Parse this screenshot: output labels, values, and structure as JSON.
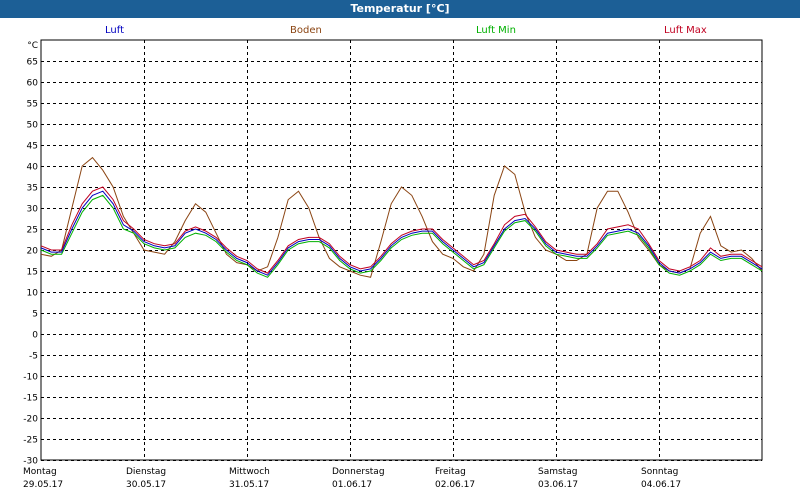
{
  "window": {
    "title": "Temperatur [°C]"
  },
  "legend": [
    {
      "name": "Luft",
      "color": "#0000c0"
    },
    {
      "name": "Boden",
      "color": "#8b4513"
    },
    {
      "name": "Luft Min",
      "color": "#00b000"
    },
    {
      "name": "Luft Max",
      "color": "#c00020"
    }
  ],
  "days": [
    {
      "weekday": "Montag",
      "date": "29.05.17"
    },
    {
      "weekday": "Dienstag",
      "date": "30.05.17"
    },
    {
      "weekday": "Mittwoch",
      "date": "31.05.17"
    },
    {
      "weekday": "Donnerstag",
      "date": "01.06.17"
    },
    {
      "weekday": "Freitag",
      "date": "02.06.17"
    },
    {
      "weekday": "Samstag",
      "date": "03.06.17"
    },
    {
      "weekday": "Sonntag",
      "date": "04.06.17"
    }
  ],
  "chart_data": {
    "type": "line",
    "title": "Temperatur [°C]",
    "ylabel": "°C",
    "ylim": [
      -30,
      70
    ],
    "yticks": [
      65,
      60,
      55,
      50,
      45,
      40,
      35,
      30,
      25,
      20,
      15,
      10,
      5,
      0,
      -5,
      -10,
      -15,
      -20,
      -25,
      -30
    ],
    "xlim": [
      0,
      7
    ],
    "grid": true,
    "x": [
      0,
      0.1,
      0.2,
      0.3,
      0.4,
      0.5,
      0.6,
      0.7,
      0.8,
      0.9,
      1.0,
      1.1,
      1.2,
      1.3,
      1.4,
      1.5,
      1.6,
      1.7,
      1.8,
      1.9,
      2.0,
      2.1,
      2.2,
      2.3,
      2.4,
      2.5,
      2.6,
      2.7,
      2.8,
      2.9,
      3.0,
      3.1,
      3.2,
      3.3,
      3.4,
      3.5,
      3.6,
      3.7,
      3.8,
      3.9,
      4.0,
      4.1,
      4.2,
      4.3,
      4.4,
      4.5,
      4.6,
      4.7,
      4.8,
      4.9,
      5.0,
      5.1,
      5.2,
      5.3,
      5.4,
      5.5,
      5.6,
      5.7,
      5.8,
      5.9,
      6.0,
      6.1,
      6.2,
      6.3,
      6.4,
      6.5,
      6.6,
      6.7,
      6.8,
      6.9,
      7.0
    ],
    "series": [
      {
        "name": "Luft",
        "values": [
          20.5,
          19.5,
          19.5,
          25,
          30,
          33,
          34,
          31,
          26,
          24.5,
          22,
          21,
          20.5,
          21,
          24,
          25,
          24,
          22.5,
          20,
          18,
          17,
          15,
          14,
          17,
          20.5,
          22,
          22.5,
          22.5,
          21,
          18,
          16,
          15,
          15.5,
          18,
          21,
          23,
          24,
          24.5,
          24.5,
          22,
          20,
          18,
          16,
          17,
          21,
          25,
          27,
          27.5,
          25,
          21.5,
          19.5,
          19,
          18.5,
          18.5,
          21,
          24,
          24.5,
          25,
          24,
          21,
          17,
          15,
          14.5,
          15.5,
          17,
          19.5,
          18,
          18.5,
          18.5,
          17,
          15.5
        ]
      },
      {
        "name": "Boden",
        "values": [
          19,
          18.5,
          20,
          30,
          40,
          42,
          39,
          35,
          28,
          24,
          20,
          19.5,
          19,
          22,
          27,
          31,
          29,
          24,
          19,
          17,
          16.5,
          15,
          16,
          23,
          32,
          34,
          30,
          23,
          18,
          16,
          15,
          14,
          13.5,
          22,
          31,
          35,
          33,
          28,
          22,
          19,
          18,
          16,
          15,
          19,
          33,
          40,
          38,
          29,
          23,
          20,
          19,
          17.5,
          17.5,
          19,
          30,
          34,
          34,
          29,
          23,
          20,
          16.5,
          15,
          14.5,
          15.5,
          24,
          28,
          21,
          19.5,
          20,
          18,
          15
        ]
      },
      {
        "name": "Luft Min",
        "values": [
          20,
          19,
          19,
          24,
          29,
          32,
          33,
          30,
          25,
          24,
          21.5,
          20.5,
          20,
          20.5,
          23,
          24,
          23.5,
          22,
          19.5,
          17.5,
          16.5,
          14.5,
          13.5,
          16.5,
          20,
          21.5,
          22,
          22,
          20.5,
          17.5,
          15.5,
          14.5,
          15,
          17.5,
          20.5,
          22.5,
          23.5,
          24,
          24,
          21.5,
          19.5,
          17.5,
          15.5,
          16.5,
          20.5,
          24.5,
          26.5,
          27,
          24.5,
          21,
          19,
          18.5,
          18,
          18,
          20.5,
          23.5,
          24,
          24.5,
          23.5,
          20.5,
          16.5,
          14.5,
          14,
          15,
          16.5,
          19,
          17.5,
          18,
          18,
          16.5,
          15
        ]
      },
      {
        "name": "Luft Max",
        "values": [
          21,
          20,
          20,
          26,
          31,
          34,
          35,
          32,
          27,
          25,
          22.5,
          21.5,
          21,
          21.5,
          24.5,
          25.5,
          24.5,
          23,
          20.5,
          18.5,
          17.5,
          15.5,
          14.5,
          17.5,
          21,
          22.5,
          23,
          23,
          21.5,
          18.5,
          16.5,
          15.5,
          16,
          18.5,
          21.5,
          23.5,
          24.5,
          25,
          25,
          22.5,
          20.5,
          18.5,
          16.5,
          17.5,
          21.5,
          26,
          28,
          28.5,
          25.5,
          22,
          20,
          19.5,
          19,
          19,
          21.5,
          25,
          25.5,
          26,
          25,
          21.5,
          17.5,
          15.5,
          15,
          16,
          17.5,
          20.5,
          18.5,
          19,
          19,
          17.5,
          16
        ]
      }
    ]
  }
}
